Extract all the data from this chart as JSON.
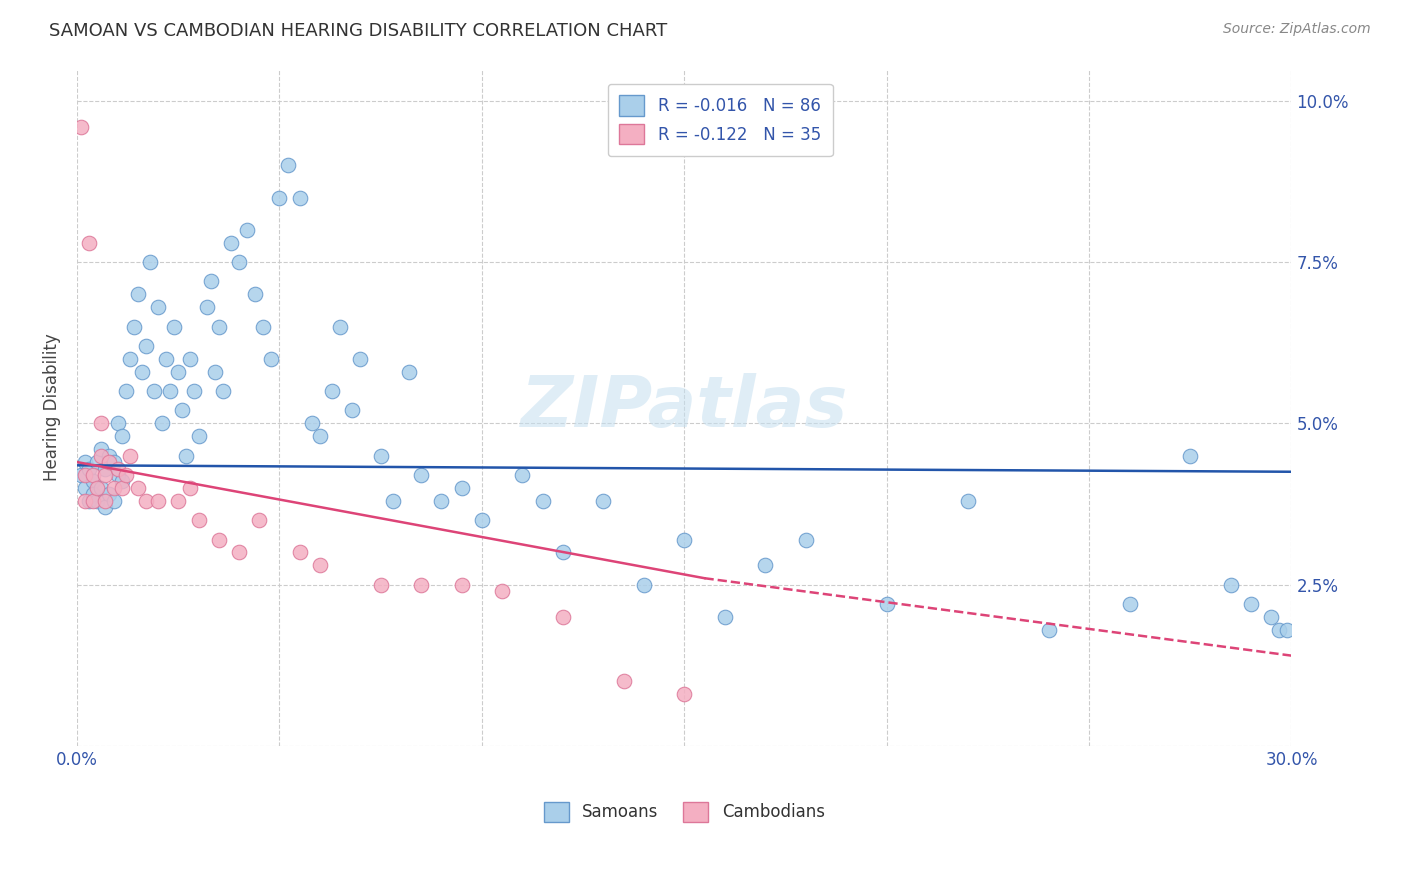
{
  "title": "SAMOAN VS CAMBODIAN HEARING DISABILITY CORRELATION CHART",
  "source": "Source: ZipAtlas.com",
  "ylabel": "Hearing Disability",
  "xlim": [
    0.0,
    0.3
  ],
  "ylim": [
    0.0,
    0.105
  ],
  "samoan_color": "#aacfea",
  "cambodian_color": "#f4afc2",
  "samoan_edge_color": "#6699cc",
  "cambodian_edge_color": "#dd7799",
  "trend_samoan_color": "#2255aa",
  "trend_cambodian_color": "#dd4477",
  "r_samoan": -0.016,
  "n_samoan": 86,
  "r_cambodian": -0.122,
  "n_cambodian": 35,
  "watermark": "ZIPatlas",
  "samoan_x": [
    0.001,
    0.002,
    0.002,
    0.003,
    0.003,
    0.004,
    0.004,
    0.005,
    0.005,
    0.006,
    0.006,
    0.007,
    0.007,
    0.008,
    0.008,
    0.009,
    0.009,
    0.01,
    0.01,
    0.011,
    0.011,
    0.012,
    0.013,
    0.014,
    0.015,
    0.016,
    0.017,
    0.018,
    0.019,
    0.02,
    0.021,
    0.022,
    0.023,
    0.024,
    0.025,
    0.026,
    0.027,
    0.028,
    0.029,
    0.03,
    0.032,
    0.033,
    0.034,
    0.035,
    0.036,
    0.038,
    0.04,
    0.042,
    0.044,
    0.046,
    0.048,
    0.05,
    0.052,
    0.055,
    0.058,
    0.06,
    0.063,
    0.065,
    0.068,
    0.07,
    0.075,
    0.078,
    0.082,
    0.085,
    0.09,
    0.095,
    0.1,
    0.11,
    0.115,
    0.12,
    0.13,
    0.14,
    0.15,
    0.16,
    0.17,
    0.18,
    0.2,
    0.22,
    0.24,
    0.26,
    0.275,
    0.285,
    0.29,
    0.295,
    0.297,
    0.299
  ],
  "samoan_y": [
    0.042,
    0.04,
    0.044,
    0.038,
    0.043,
    0.041,
    0.039,
    0.044,
    0.038,
    0.046,
    0.04,
    0.043,
    0.037,
    0.045,
    0.039,
    0.044,
    0.038,
    0.05,
    0.042,
    0.048,
    0.041,
    0.055,
    0.06,
    0.065,
    0.07,
    0.058,
    0.062,
    0.075,
    0.055,
    0.068,
    0.05,
    0.06,
    0.055,
    0.065,
    0.058,
    0.052,
    0.045,
    0.06,
    0.055,
    0.048,
    0.068,
    0.072,
    0.058,
    0.065,
    0.055,
    0.078,
    0.075,
    0.08,
    0.07,
    0.065,
    0.06,
    0.085,
    0.09,
    0.085,
    0.05,
    0.048,
    0.055,
    0.065,
    0.052,
    0.06,
    0.045,
    0.038,
    0.058,
    0.042,
    0.038,
    0.04,
    0.035,
    0.042,
    0.038,
    0.03,
    0.038,
    0.025,
    0.032,
    0.02,
    0.028,
    0.032,
    0.022,
    0.038,
    0.018,
    0.022,
    0.045,
    0.025,
    0.022,
    0.02,
    0.018,
    0.018
  ],
  "cambodian_x": [
    0.001,
    0.002,
    0.002,
    0.003,
    0.004,
    0.004,
    0.005,
    0.006,
    0.006,
    0.007,
    0.007,
    0.008,
    0.009,
    0.01,
    0.011,
    0.012,
    0.013,
    0.015,
    0.017,
    0.02,
    0.025,
    0.028,
    0.03,
    0.035,
    0.04,
    0.045,
    0.055,
    0.06,
    0.075,
    0.085,
    0.095,
    0.105,
    0.12,
    0.135,
    0.15
  ],
  "cambodian_y": [
    0.096,
    0.042,
    0.038,
    0.078,
    0.042,
    0.038,
    0.04,
    0.045,
    0.05,
    0.042,
    0.038,
    0.044,
    0.04,
    0.043,
    0.04,
    0.042,
    0.045,
    0.04,
    0.038,
    0.038,
    0.038,
    0.04,
    0.035,
    0.032,
    0.03,
    0.035,
    0.03,
    0.028,
    0.025,
    0.025,
    0.025,
    0.024,
    0.02,
    0.01,
    0.008
  ],
  "trend_sam_x0": 0.0,
  "trend_sam_x1": 0.3,
  "trend_sam_y0": 0.0435,
  "trend_sam_y1": 0.0425,
  "trend_cam_x0": 0.0,
  "trend_cam_x1": 0.155,
  "trend_cam_y0": 0.044,
  "trend_cam_y1": 0.026,
  "trend_cam_dash_x0": 0.155,
  "trend_cam_dash_x1": 0.3,
  "trend_cam_dash_y0": 0.026,
  "trend_cam_dash_y1": 0.014
}
